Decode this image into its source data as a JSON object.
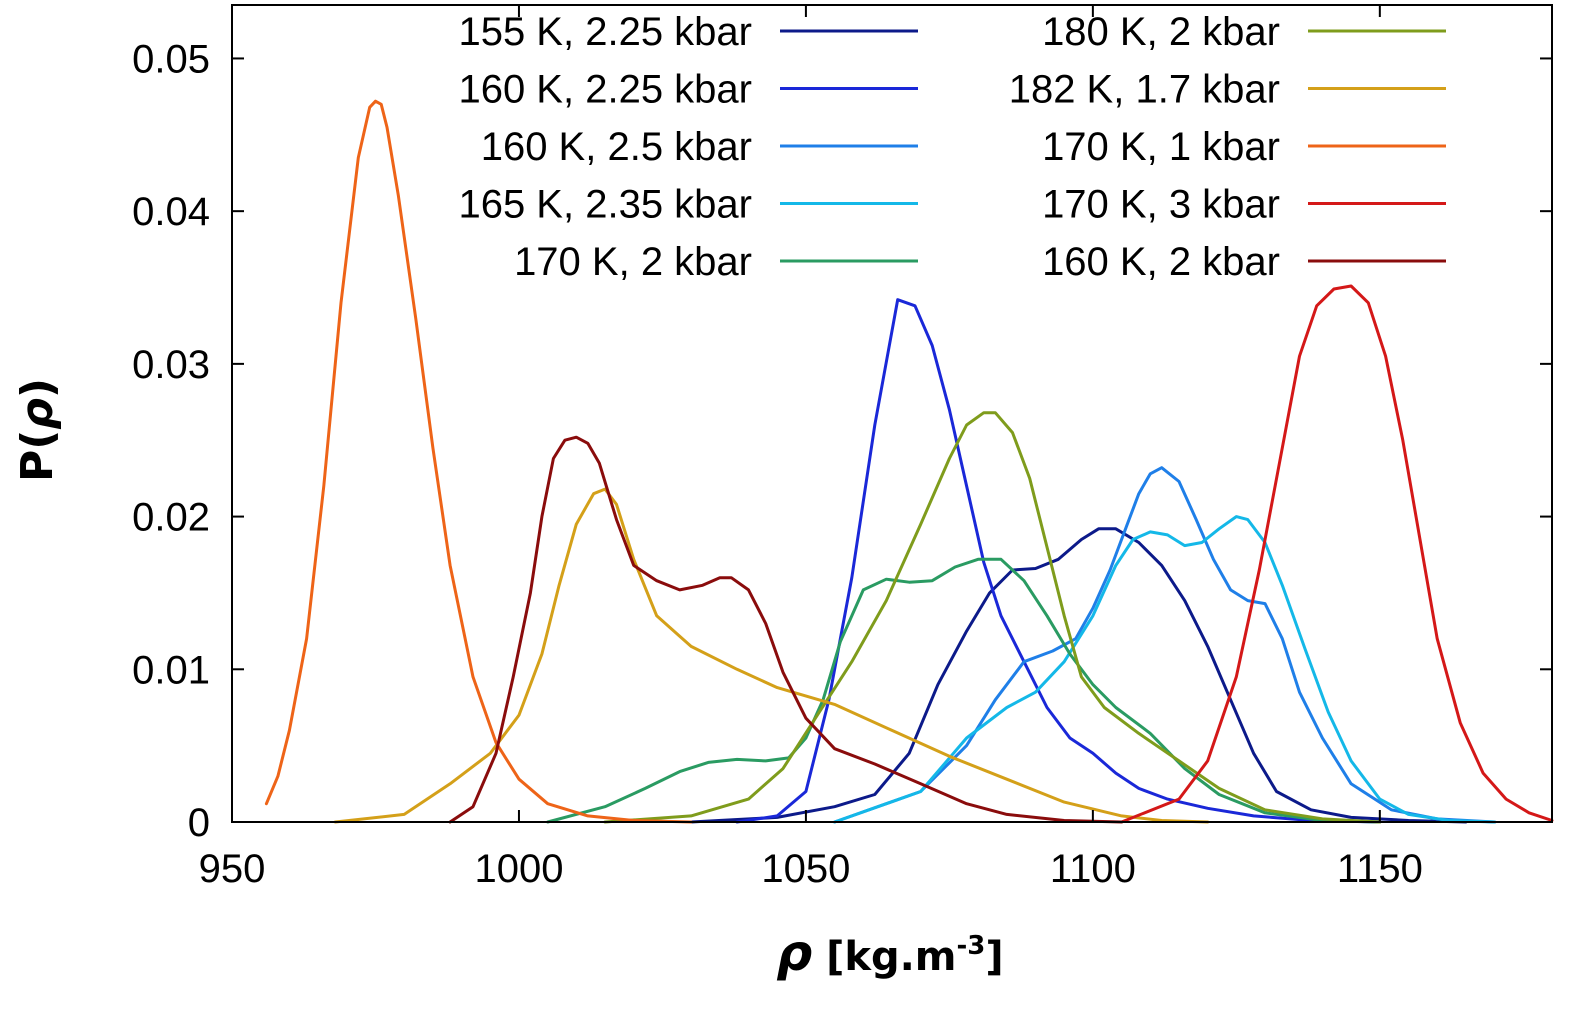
{
  "chart_data": {
    "type": "line",
    "title": "",
    "xlabel": {
      "symbol": "ρ",
      "units": " [kg.m",
      "exponent": "-3",
      "close": "]"
    },
    "ylabel": {
      "prefix": "P(",
      "symbol": "ρ",
      "suffix": ")"
    },
    "xlim": [
      950,
      1180
    ],
    "ylim": [
      0,
      0.0535
    ],
    "xticks": [
      950,
      1000,
      1050,
      1100,
      1150
    ],
    "xtick_labels": [
      "950",
      "1000",
      "1050",
      "1100",
      "1150"
    ],
    "yticks": [
      0,
      0.01,
      0.02,
      0.03,
      0.04,
      0.05
    ],
    "ytick_labels": [
      "0",
      "0.01",
      "0.02",
      "0.03",
      "0.04",
      "0.05"
    ],
    "grid": false,
    "legend": "top, two columns",
    "series": [
      {
        "name": "155 K, 2.25 kbar",
        "color": "#0c1a8a",
        "x": [
          1030,
          1045,
          1055,
          1062,
          1068,
          1073,
          1078,
          1082,
          1086,
          1090,
          1094,
          1098,
          1101,
          1104,
          1108,
          1112,
          1116,
          1120,
          1124,
          1128,
          1132,
          1138,
          1145,
          1155,
          1165
        ],
        "y": [
          0,
          0.0003,
          0.001,
          0.0018,
          0.0045,
          0.009,
          0.0125,
          0.015,
          0.0165,
          0.0166,
          0.0172,
          0.0185,
          0.0192,
          0.0192,
          0.0183,
          0.0168,
          0.0145,
          0.0115,
          0.008,
          0.0045,
          0.002,
          0.0008,
          0.0003,
          0.0001,
          0
        ]
      },
      {
        "name": "160 K, 2.25 kbar",
        "color": "#1a28d8",
        "x": [
          1038,
          1045,
          1050,
          1054,
          1058,
          1062,
          1066,
          1069,
          1072,
          1075,
          1078,
          1081,
          1084,
          1088,
          1092,
          1096,
          1100,
          1104,
          1108,
          1113,
          1120,
          1128,
          1138,
          1150
        ],
        "y": [
          0,
          0.0004,
          0.002,
          0.008,
          0.016,
          0.026,
          0.0342,
          0.0338,
          0.0312,
          0.027,
          0.022,
          0.017,
          0.0135,
          0.0105,
          0.0075,
          0.0055,
          0.0045,
          0.0032,
          0.0022,
          0.0015,
          0.0009,
          0.0004,
          0.0001,
          0
        ]
      },
      {
        "name": "160 K, 2.5 kbar",
        "color": "#1f7fe8",
        "x": [
          1055,
          1070,
          1078,
          1083,
          1088,
          1093,
          1097,
          1100,
          1103,
          1106,
          1108,
          1110,
          1112,
          1115,
          1118,
          1121,
          1124,
          1127,
          1130,
          1133,
          1136,
          1140,
          1145,
          1152,
          1160,
          1170
        ],
        "y": [
          0,
          0.002,
          0.005,
          0.008,
          0.0105,
          0.0112,
          0.012,
          0.014,
          0.0165,
          0.0195,
          0.0215,
          0.0228,
          0.0232,
          0.0223,
          0.0198,
          0.0172,
          0.0152,
          0.0145,
          0.0143,
          0.012,
          0.0085,
          0.0055,
          0.0025,
          0.0008,
          0.0002,
          0
        ]
      },
      {
        "name": "165 K, 2.35 kbar",
        "color": "#14b8e8",
        "x": [
          1055,
          1070,
          1078,
          1085,
          1090,
          1095,
          1100,
          1104,
          1107,
          1110,
          1113,
          1116,
          1119,
          1122,
          1125,
          1127,
          1130,
          1133,
          1137,
          1141,
          1145,
          1150,
          1155,
          1162,
          1170
        ],
        "y": [
          0,
          0.002,
          0.0055,
          0.0075,
          0.0085,
          0.0105,
          0.0135,
          0.0168,
          0.0185,
          0.019,
          0.0188,
          0.0181,
          0.0183,
          0.0192,
          0.02,
          0.0198,
          0.0183,
          0.0155,
          0.0113,
          0.0072,
          0.004,
          0.0015,
          0.0005,
          0.0001,
          0
        ]
      },
      {
        "name": "170 K, 2 kbar",
        "color": "#2a9b62",
        "x": [
          1005,
          1015,
          1022,
          1028,
          1033,
          1038,
          1043,
          1047,
          1050,
          1053,
          1056,
          1060,
          1064,
          1068,
          1072,
          1076,
          1080,
          1084,
          1088,
          1092,
          1096,
          1100,
          1104,
          1110,
          1116,
          1122,
          1130,
          1140,
          1150
        ],
        "y": [
          0,
          0.001,
          0.0022,
          0.0033,
          0.0039,
          0.0041,
          0.004,
          0.0042,
          0.0055,
          0.008,
          0.0118,
          0.0152,
          0.0159,
          0.0157,
          0.0158,
          0.0167,
          0.0172,
          0.0172,
          0.0158,
          0.0135,
          0.011,
          0.009,
          0.0075,
          0.0058,
          0.0035,
          0.0018,
          0.0006,
          0.0001,
          0
        ]
      },
      {
        "name": "180 K, 2 kbar",
        "color": "#7f9c1c",
        "x": [
          1015,
          1030,
          1040,
          1046,
          1052,
          1058,
          1064,
          1070,
          1075,
          1078,
          1081,
          1083,
          1086,
          1089,
          1092,
          1095,
          1098,
          1102,
          1108,
          1115,
          1122,
          1130,
          1140,
          1150
        ],
        "y": [
          0,
          0.0004,
          0.0015,
          0.0035,
          0.007,
          0.0105,
          0.0145,
          0.0195,
          0.0238,
          0.026,
          0.0268,
          0.0268,
          0.0255,
          0.0225,
          0.018,
          0.0135,
          0.0095,
          0.0075,
          0.0058,
          0.004,
          0.0022,
          0.0008,
          0.0002,
          0
        ]
      },
      {
        "name": "182 K, 1.7 kbar",
        "color": "#d4a019",
        "x": [
          968,
          980,
          988,
          995,
          1000,
          1004,
          1007,
          1010,
          1013,
          1015,
          1017,
          1020,
          1024,
          1030,
          1038,
          1045,
          1055,
          1065,
          1075,
          1085,
          1095,
          1105,
          1112,
          1120
        ],
        "y": [
          0,
          0.0005,
          0.0025,
          0.0045,
          0.007,
          0.011,
          0.0155,
          0.0195,
          0.0215,
          0.0218,
          0.0208,
          0.0172,
          0.0135,
          0.0115,
          0.01,
          0.0088,
          0.0077,
          0.006,
          0.0043,
          0.0028,
          0.0013,
          0.0004,
          0.0001,
          0
        ]
      },
      {
        "name": "170 K, 1 kbar",
        "color": "#ee6418",
        "x": [
          956,
          958,
          960,
          963,
          966,
          969,
          972,
          974,
          975,
          976,
          977,
          979,
          982,
          985,
          988,
          992,
          996,
          1000,
          1005,
          1012,
          1020,
          1030
        ],
        "y": [
          0.0012,
          0.003,
          0.006,
          0.012,
          0.022,
          0.034,
          0.0435,
          0.0468,
          0.0472,
          0.047,
          0.0455,
          0.041,
          0.033,
          0.0245,
          0.0168,
          0.0095,
          0.0052,
          0.0028,
          0.0012,
          0.0004,
          0.0001,
          0
        ]
      },
      {
        "name": "170 K, 3 kbar",
        "color": "#d41818",
        "x": [
          1105,
          1115,
          1120,
          1125,
          1129,
          1133,
          1136,
          1139,
          1142,
          1145,
          1148,
          1151,
          1154,
          1157,
          1160,
          1164,
          1168,
          1172,
          1176,
          1180
        ],
        "y": [
          0,
          0.0015,
          0.004,
          0.0095,
          0.0165,
          0.0245,
          0.0305,
          0.0338,
          0.0349,
          0.0351,
          0.034,
          0.0305,
          0.025,
          0.0185,
          0.012,
          0.0065,
          0.0032,
          0.0015,
          0.0006,
          0.0001
        ]
      },
      {
        "name": "160 K, 2 kbar",
        "color": "#8a0c0c",
        "x": [
          988,
          992,
          996,
          999,
          1002,
          1004,
          1006,
          1008,
          1010,
          1012,
          1014,
          1017,
          1020,
          1024,
          1028,
          1032,
          1035,
          1037,
          1040,
          1043,
          1046,
          1050,
          1055,
          1062,
          1070,
          1078,
          1085,
          1095,
          1105
        ],
        "y": [
          0,
          0.001,
          0.0045,
          0.0095,
          0.015,
          0.02,
          0.0238,
          0.025,
          0.0252,
          0.0248,
          0.0235,
          0.0198,
          0.0168,
          0.0158,
          0.0152,
          0.0155,
          0.016,
          0.016,
          0.0152,
          0.013,
          0.0098,
          0.0068,
          0.0048,
          0.0038,
          0.0025,
          0.0012,
          0.0005,
          0.0001,
          0
        ]
      }
    ]
  }
}
